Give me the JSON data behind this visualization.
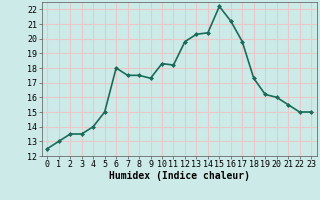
{
  "x": [
    0,
    1,
    2,
    3,
    4,
    5,
    6,
    7,
    8,
    9,
    10,
    11,
    12,
    13,
    14,
    15,
    16,
    17,
    18,
    19,
    20,
    21,
    22,
    23
  ],
  "y": [
    12.5,
    13.0,
    13.5,
    13.5,
    14.0,
    15.0,
    18.0,
    17.5,
    17.5,
    17.3,
    18.3,
    18.2,
    19.8,
    20.3,
    20.4,
    22.2,
    21.2,
    19.8,
    17.3,
    16.2,
    16.0,
    15.5,
    15.0,
    15.0
  ],
  "line_color": "#1a6b5a",
  "marker": "D",
  "marker_size": 2,
  "background_color": "#cceae7",
  "grid_color": "#e8c8c8",
  "xlabel": "Humidex (Indice chaleur)",
  "xlim": [
    -0.5,
    23.5
  ],
  "ylim": [
    12,
    22.5
  ],
  "yticks": [
    12,
    13,
    14,
    15,
    16,
    17,
    18,
    19,
    20,
    21,
    22
  ],
  "xticks": [
    0,
    1,
    2,
    3,
    4,
    5,
    6,
    7,
    8,
    9,
    10,
    11,
    12,
    13,
    14,
    15,
    16,
    17,
    18,
    19,
    20,
    21,
    22,
    23
  ],
  "xlabel_fontsize": 7,
  "tick_fontsize": 6,
  "linewidth": 1.2
}
